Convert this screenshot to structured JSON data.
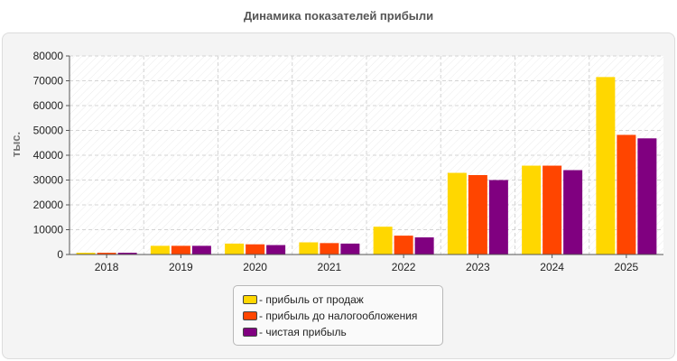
{
  "chart_data": {
    "type": "bar",
    "title": "Динамика показателей прибыли",
    "xlabel": "",
    "ylabel": "тыс.",
    "ylim": [
      0,
      80000
    ],
    "yticks": [
      0,
      10000,
      20000,
      30000,
      40000,
      50000,
      60000,
      70000,
      80000
    ],
    "grid": true,
    "legend_position": "bottom",
    "categories": [
      "2018",
      "2019",
      "2020",
      "2021",
      "2022",
      "2023",
      "2024",
      "2025"
    ],
    "series": [
      {
        "name": "- прибыль от продаж",
        "color": "#ffd700",
        "values": [
          700,
          3500,
          4400,
          4900,
          11200,
          32900,
          35800,
          71500
        ]
      },
      {
        "name": "- прибыль до налогообложения",
        "color": "#ff4500",
        "values": [
          700,
          3500,
          4100,
          4600,
          7600,
          32000,
          35800,
          48200
        ]
      },
      {
        "name": "- чистая прибыль",
        "color": "#800080",
        "values": [
          700,
          3500,
          3800,
          4400,
          6900,
          30000,
          34000,
          46800
        ]
      }
    ]
  }
}
